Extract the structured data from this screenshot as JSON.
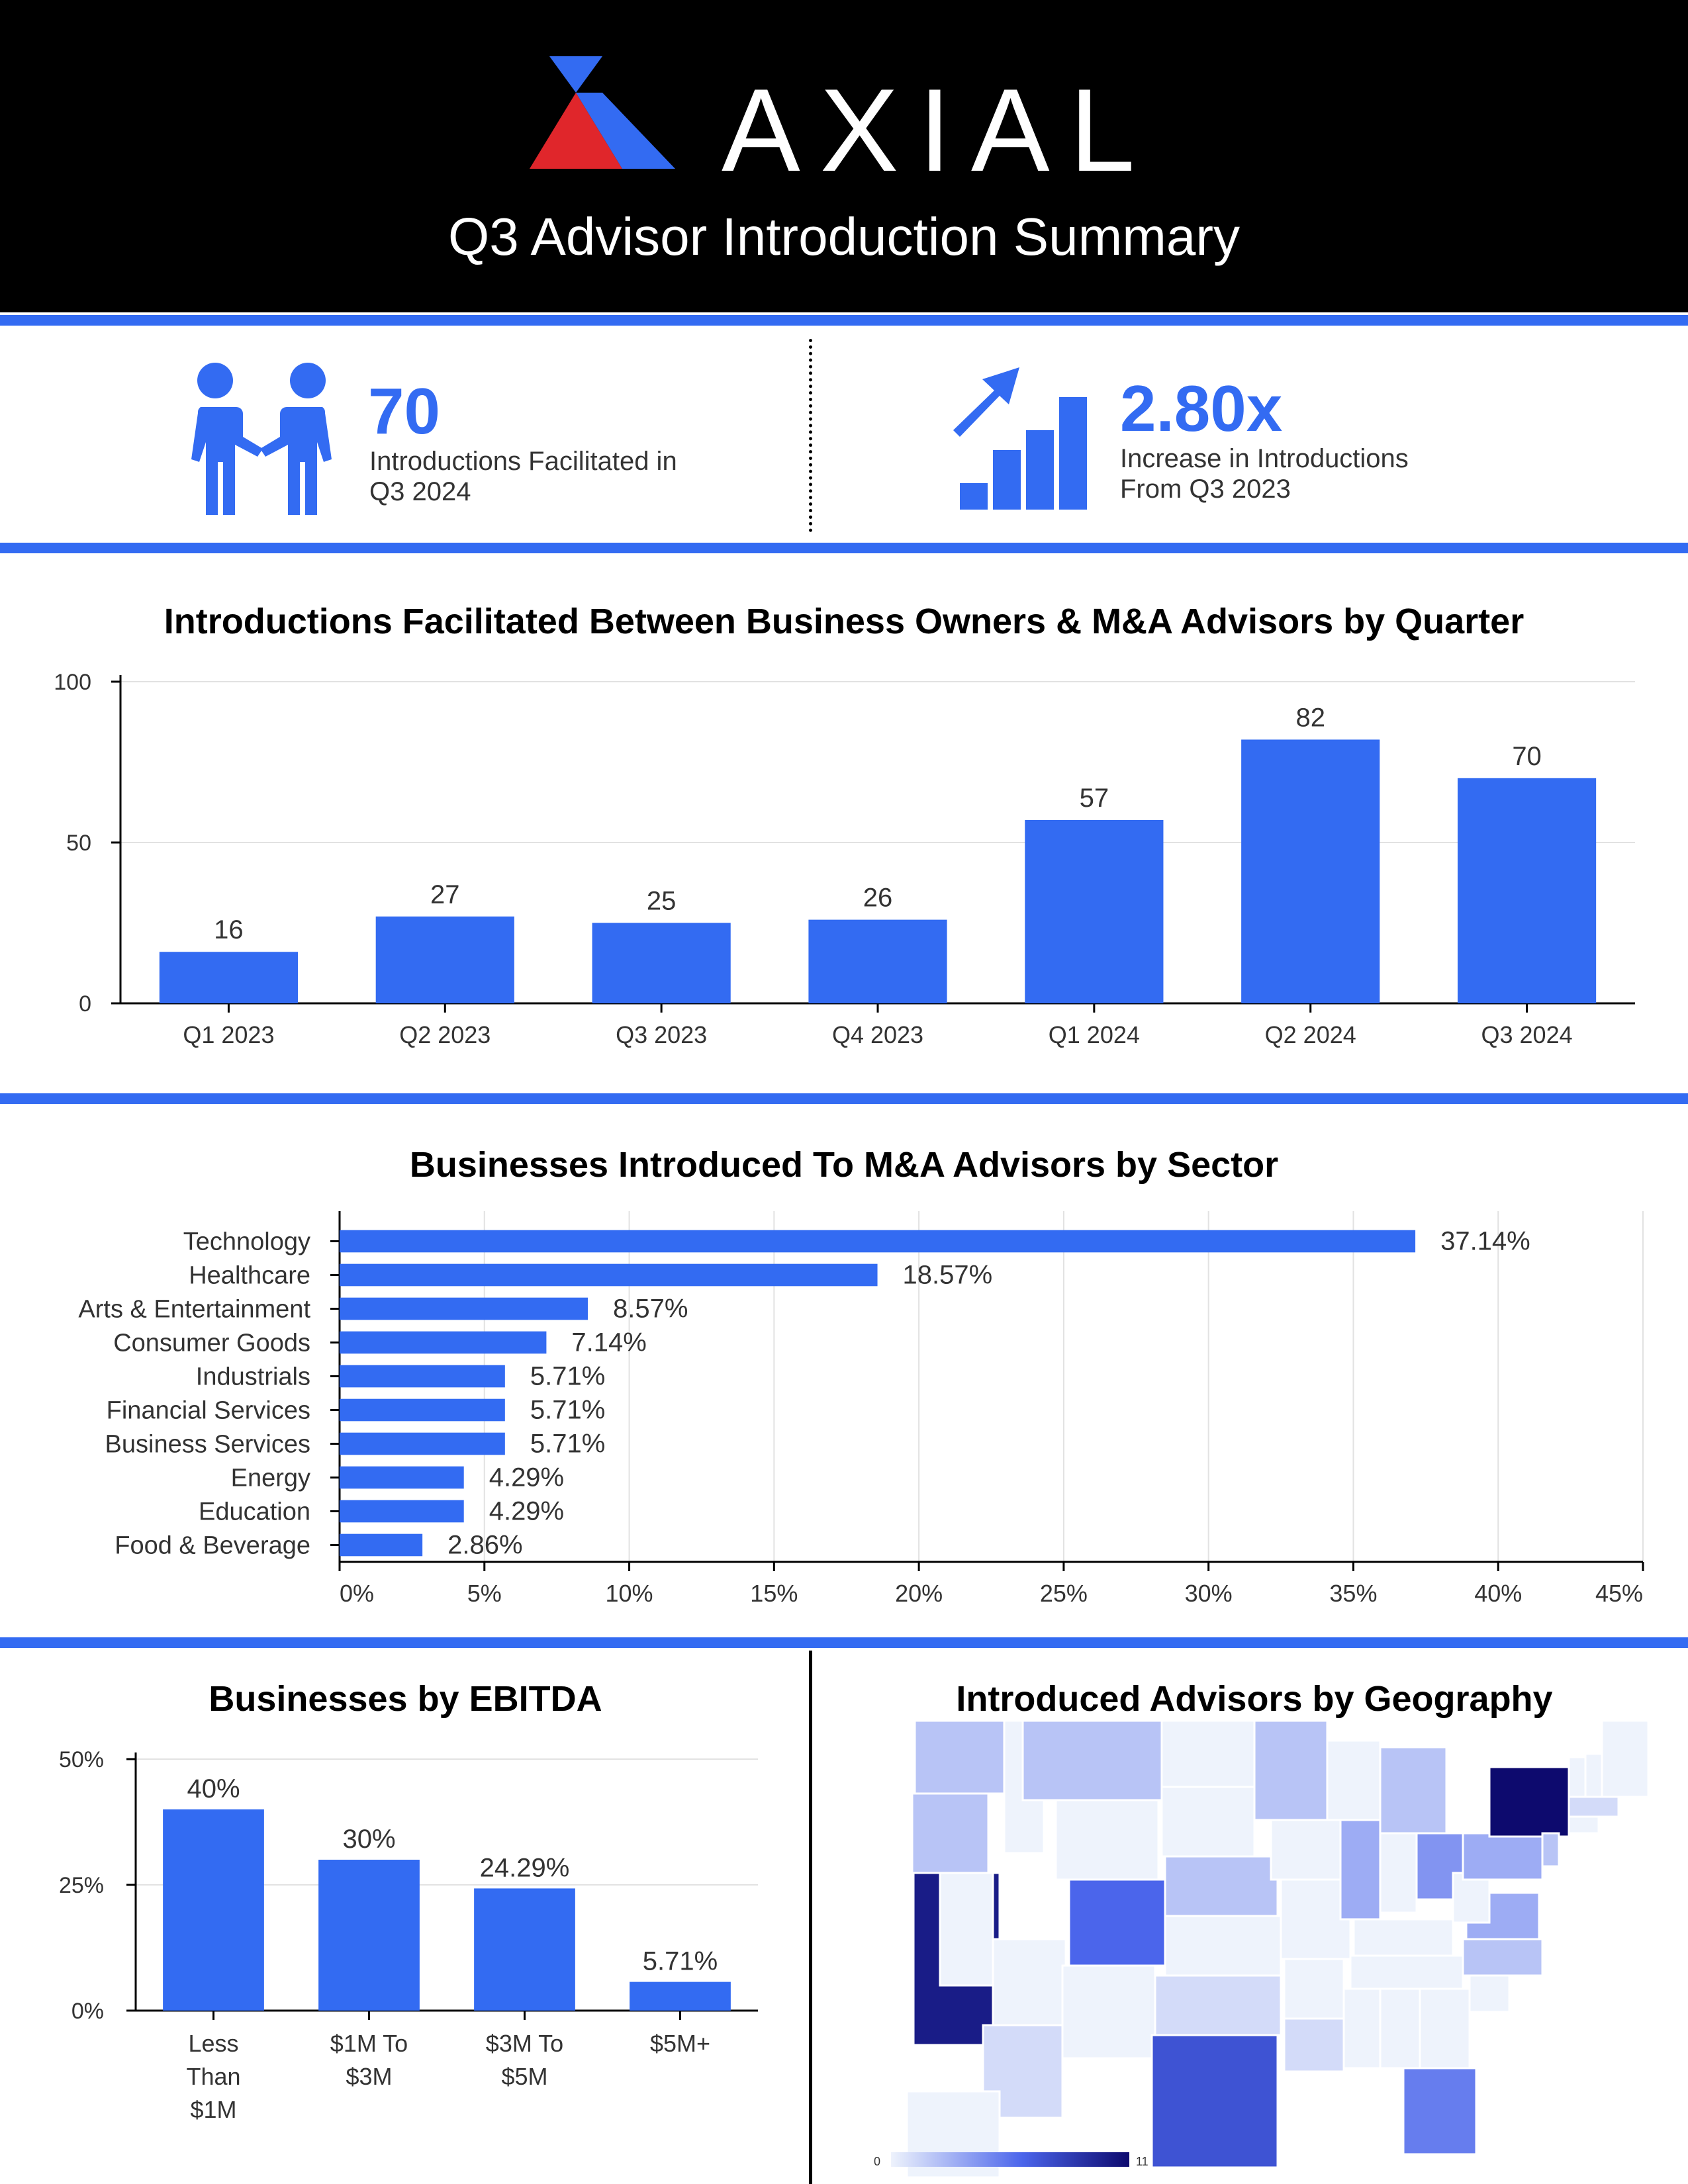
{
  "header": {
    "logo_text": "AXIAL",
    "title": "Q3 Advisor Introduction Summary"
  },
  "stats": [
    {
      "icon": "handshake-people-icon",
      "value": "70",
      "line1": "Introductions Facilitated in",
      "line2": "Q3 2024"
    },
    {
      "icon": "growth-chart-icon",
      "value": "2.80x",
      "line1": "Increase in Introductions",
      "line2": "From Q3 2023"
    }
  ],
  "colors": {
    "accent": "#336bf2",
    "header_bg": "#000000",
    "map_low": "#eef3fc",
    "map_high": "#0d0a6e"
  },
  "chart_data": [
    {
      "type": "bar",
      "title": "Introductions Facilitated Between Business Owners & M&A Advisors by Quarter",
      "categories": [
        "Q1 2023",
        "Q2 2023",
        "Q3 2023",
        "Q4 2023",
        "Q1 2024",
        "Q2 2024",
        "Q3 2024"
      ],
      "values": [
        16,
        27,
        25,
        26,
        57,
        82,
        70
      ],
      "ylim": [
        0,
        100
      ],
      "yticks": [
        "0",
        "50",
        "100"
      ],
      "grid": true
    },
    {
      "type": "bar",
      "orientation": "horizontal",
      "title": "Businesses Introduced To M&A Advisors by Sector",
      "categories": [
        "Technology",
        "Healthcare",
        "Arts & Entertainment",
        "Consumer Goods",
        "Industrials",
        "Financial Services",
        "Business Services",
        "Energy",
        "Education",
        "Food & Beverage"
      ],
      "values": [
        37.14,
        18.57,
        8.57,
        7.14,
        5.71,
        5.71,
        5.71,
        4.29,
        4.29,
        2.86
      ],
      "labels": [
        "37.14%",
        "18.57%",
        "8.57%",
        "7.14%",
        "5.71%",
        "5.71%",
        "5.71%",
        "4.29%",
        "4.29%",
        "2.86%"
      ],
      "xlim": [
        0,
        45
      ],
      "xticks": [
        "0%",
        "5%",
        "10%",
        "15%",
        "20%",
        "25%",
        "30%",
        "35%",
        "40%",
        "45%"
      ],
      "grid": true
    },
    {
      "type": "bar",
      "title": "Businesses by EBITDA",
      "categories": [
        [
          "Less",
          "Than",
          "$1M"
        ],
        [
          "$1M To",
          "$3M"
        ],
        [
          "$3M To",
          "$5M"
        ],
        [
          "$5M+"
        ]
      ],
      "values": [
        40,
        30,
        24.29,
        5.71
      ],
      "labels": [
        "40%",
        "30%",
        "24.29%",
        "5.71%"
      ],
      "ylim": [
        0,
        50
      ],
      "yticks": [
        "0%",
        "25%",
        "50%"
      ],
      "grid": true
    },
    {
      "type": "heatmap",
      "title": "Introduced Advisors by Geography",
      "colorscale": {
        "min": "0",
        "max": "11"
      },
      "regions": [
        {
          "state": "WA",
          "v": 2
        },
        {
          "state": "OR",
          "v": 2
        },
        {
          "state": "CA",
          "v": 10
        },
        {
          "state": "NV",
          "v": 0
        },
        {
          "state": "ID",
          "v": 0
        },
        {
          "state": "MT",
          "v": 2
        },
        {
          "state": "WY",
          "v": 0
        },
        {
          "state": "UT",
          "v": 0
        },
        {
          "state": "AZ",
          "v": 1
        },
        {
          "state": "CO",
          "v": 6
        },
        {
          "state": "NM",
          "v": 0
        },
        {
          "state": "ND",
          "v": 0
        },
        {
          "state": "SD",
          "v": 0
        },
        {
          "state": "NE",
          "v": 2
        },
        {
          "state": "KS",
          "v": 0
        },
        {
          "state": "OK",
          "v": 1
        },
        {
          "state": "TX",
          "v": 7
        },
        {
          "state": "MN",
          "v": 2
        },
        {
          "state": "IA",
          "v": 0
        },
        {
          "state": "MO",
          "v": 0
        },
        {
          "state": "AR",
          "v": 0
        },
        {
          "state": "LA",
          "v": 1
        },
        {
          "state": "WI",
          "v": 0
        },
        {
          "state": "IL",
          "v": 3
        },
        {
          "state": "MI",
          "v": 2
        },
        {
          "state": "IN",
          "v": 0
        },
        {
          "state": "OH",
          "v": 4
        },
        {
          "state": "KY",
          "v": 0
        },
        {
          "state": "TN",
          "v": 0
        },
        {
          "state": "MS",
          "v": 0
        },
        {
          "state": "AL",
          "v": 0
        },
        {
          "state": "GA",
          "v": 0
        },
        {
          "state": "FL",
          "v": 5
        },
        {
          "state": "SC",
          "v": 0
        },
        {
          "state": "NC",
          "v": 2
        },
        {
          "state": "VA",
          "v": 3
        },
        {
          "state": "WV",
          "v": 0
        },
        {
          "state": "PA",
          "v": 3
        },
        {
          "state": "NY",
          "v": 11
        },
        {
          "state": "NJ",
          "v": 2
        },
        {
          "state": "VT",
          "v": 0
        },
        {
          "state": "NH",
          "v": 0
        },
        {
          "state": "ME",
          "v": 0
        },
        {
          "state": "MA",
          "v": 1
        },
        {
          "state": "CT",
          "v": 0
        },
        {
          "state": "AK",
          "v": 0
        }
      ]
    }
  ]
}
